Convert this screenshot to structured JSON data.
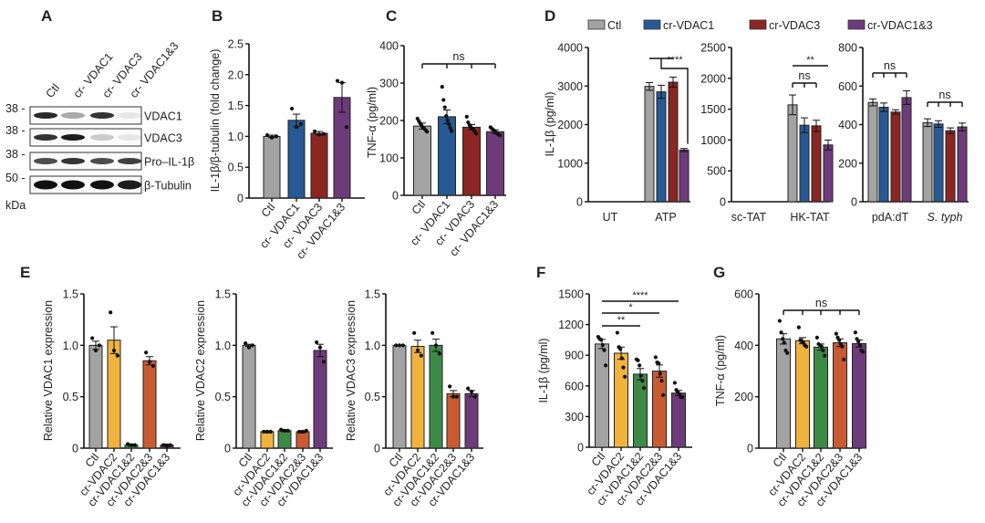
{
  "panel_labels": [
    "A",
    "B",
    "C",
    "D",
    "E",
    "F",
    "G"
  ],
  "western_blot": {
    "lanes": [
      "Ctl",
      "cr- VDAC1",
      "cr- VDAC3",
      "cr- VDAC1&3"
    ],
    "unit": "kDa",
    "rows": [
      {
        "label": "VDAC1",
        "marker": "38 -",
        "intensities": [
          0.9,
          0.35,
          0.85,
          0.08
        ]
      },
      {
        "label": "VDAC3",
        "marker": "38 -",
        "intensities": [
          0.85,
          0.95,
          0.2,
          0.08
        ]
      },
      {
        "label": "Pro–IL-1β",
        "marker": "38 -",
        "intensities": [
          0.75,
          0.85,
          0.75,
          0.8
        ]
      },
      {
        "label": "β-Tubulin",
        "marker": "50 -",
        "intensities": [
          1,
          1,
          1,
          0.95
        ]
      }
    ]
  },
  "legend_D": [
    {
      "name": "Ctl",
      "color": "#a3a3a3"
    },
    {
      "name": "cr-VDAC1",
      "color": "#275a94"
    },
    {
      "name": "cr-VDAC3",
      "color": "#8b2622"
    },
    {
      "name": "cr-VDAC1&3",
      "color": "#6e3b7a"
    }
  ],
  "chart_data": [
    {
      "panel": "B",
      "type": "bar",
      "ylabel": "IL-1β/β-tubulin (fold change)",
      "ylim": [
        0,
        2.5
      ],
      "yticks": [
        "0",
        "0.5",
        "1.0",
        "1.5",
        "2.0",
        "2.5"
      ],
      "categories": [
        "Ctl",
        "cr- VDAC1",
        "cr- VDAC3",
        "cr- VDAC1&3"
      ],
      "values": [
        1.0,
        1.26,
        1.05,
        1.63
      ],
      "errors": [
        0.02,
        0.1,
        0.03,
        0.24
      ],
      "points": [
        [
          1.02,
          0.98,
          1.0
        ],
        [
          1.45,
          1.15,
          1.2
        ],
        [
          1.08,
          1.03,
          1.04
        ],
        [
          1.9,
          1.87,
          1.15
        ]
      ],
      "colors": [
        "#a3a3a3",
        "#275a94",
        "#8b2622",
        "#6e3b7a"
      ],
      "annotations": []
    },
    {
      "panel": "C",
      "type": "bar",
      "ylabel": "TNF-α (pg/ml)",
      "ylim": [
        0,
        400
      ],
      "yticks": [
        "0",
        "100",
        "200",
        "300",
        "400"
      ],
      "categories": [
        "Ctl",
        "cr- VDAC1",
        "cr- VDAC3",
        "cr- VDAC1&3"
      ],
      "values": [
        185,
        210,
        182,
        170
      ],
      "errors": [
        8,
        18,
        7,
        5
      ],
      "points": [
        [
          205,
          198,
          192,
          186,
          181,
          178,
          174,
          170
        ],
        [
          290,
          255,
          235,
          212,
          200,
          190,
          180,
          172
        ],
        [
          210,
          195,
          188,
          182,
          178,
          175,
          170,
          165
        ],
        [
          182,
          178,
          175,
          172,
          168,
          165,
          162,
          160
        ]
      ],
      "colors": [
        "#a3a3a3",
        "#275a94",
        "#8b2622",
        "#6e3b7a"
      ],
      "annotations": [
        {
          "kind": "bracket",
          "from": 0,
          "to": 3,
          "text": "ns"
        }
      ]
    },
    {
      "panel": "D",
      "type": "grouped-bar",
      "ylabel": "IL-1β (pg/ml)",
      "ylim": [
        0,
        4000
      ],
      "yticks": [
        "0",
        "1000",
        "2000",
        "3000",
        "4000"
      ],
      "categories": [
        "UT",
        "ATP"
      ],
      "series": [
        {
          "name": "Ctl",
          "values": [
            0,
            2990
          ],
          "errors": [
            0,
            100
          ]
        },
        {
          "name": "cr-VDAC1",
          "values": [
            0,
            2850
          ],
          "errors": [
            0,
            170
          ]
        },
        {
          "name": "cr-VDAC3",
          "values": [
            0,
            3100
          ],
          "errors": [
            0,
            130
          ]
        },
        {
          "name": "cr-VDAC1&3",
          "values": [
            0,
            1340
          ],
          "errors": [
            0,
            40
          ]
        }
      ],
      "annotations": [
        {
          "kind": "step",
          "group": 1,
          "from": 0,
          "to": 2,
          "target": 3,
          "text": "****"
        }
      ]
    },
    {
      "panel": "D",
      "type": "grouped-bar",
      "ylabel": "",
      "ylim": [
        0,
        2500
      ],
      "yticks": [
        "0",
        "500",
        "1000",
        "1500",
        "2000",
        "2500"
      ],
      "categories": [
        "sc-TAT",
        "HK-TAT"
      ],
      "series": [
        {
          "name": "Ctl",
          "values": [
            0,
            1570
          ],
          "errors": [
            0,
            160
          ]
        },
        {
          "name": "cr-VDAC1",
          "values": [
            0,
            1240
          ],
          "errors": [
            0,
            120
          ]
        },
        {
          "name": "cr-VDAC3",
          "values": [
            0,
            1230
          ],
          "errors": [
            0,
            90
          ]
        },
        {
          "name": "cr-VDAC1&3",
          "values": [
            0,
            920
          ],
          "errors": [
            0,
            80
          ]
        }
      ],
      "annotations": [
        {
          "kind": "line",
          "group": 1,
          "from": 0,
          "to": 3,
          "text": "**"
        },
        {
          "kind": "bracket",
          "group": 1,
          "from": 0,
          "to": 2,
          "text": "ns"
        }
      ]
    },
    {
      "panel": "D",
      "type": "grouped-bar",
      "ylabel": "",
      "ylim": [
        0,
        800
      ],
      "yticks": [
        "0",
        "200",
        "400",
        "600",
        "800"
      ],
      "categories": [
        "pdA:dT",
        "S. typh"
      ],
      "series": [
        {
          "name": "Ctl",
          "values": [
            515,
            410
          ],
          "errors": [
            18,
            20
          ]
        },
        {
          "name": "cr-VDAC1",
          "values": [
            490,
            403
          ],
          "errors": [
            22,
            17
          ]
        },
        {
          "name": "cr-VDAC3",
          "values": [
            465,
            368
          ],
          "errors": [
            12,
            15
          ]
        },
        {
          "name": "cr-VDAC1&3",
          "values": [
            540,
            388
          ],
          "errors": [
            35,
            20
          ]
        }
      ],
      "annotations": [
        {
          "kind": "bracket",
          "group": 0,
          "from": 0,
          "to": 3,
          "text": "ns"
        },
        {
          "kind": "bracket",
          "group": 1,
          "from": 0,
          "to": 3,
          "text": "ns"
        }
      ]
    },
    {
      "panel": "E",
      "type": "bar",
      "ylabel": "Relative VDAC1 expression",
      "ylim": [
        0,
        1.5
      ],
      "yticks": [
        "0",
        "0.5",
        "1.0",
        "1.5"
      ],
      "categories": [
        "Ctl",
        "cr-VDAC2",
        "cr-VDAC1&2",
        "cr-VDAC2&3",
        "cr-VDAC1&3"
      ],
      "values": [
        1.0,
        1.05,
        0.03,
        0.85,
        0.03
      ],
      "errors": [
        0.04,
        0.13,
        0.01,
        0.04,
        0.01
      ],
      "points": [
        [
          1.07,
          0.95,
          1.0
        ],
        [
          1.32,
          0.95,
          0.9
        ],
        [
          0.04,
          0.03,
          0.03
        ],
        [
          0.93,
          0.84,
          0.8
        ],
        [
          0.03,
          0.02,
          0.03
        ]
      ],
      "colors": [
        "#a3a3a3",
        "#f0b33e",
        "#3d8a47",
        "#c95b32",
        "#6e3b7a"
      ],
      "annotations": []
    },
    {
      "panel": "E",
      "type": "bar",
      "ylabel": "Relative VDAC2 expression",
      "ylim": [
        0,
        1.5
      ],
      "yticks": [
        "0",
        "0.5",
        "1.0",
        "1.5"
      ],
      "categories": [
        "Ctl",
        "cr-VDAC2",
        "cr-VDAC1&2",
        "cr-VDAC2&3",
        "cr-VDAC1&3"
      ],
      "values": [
        1.0,
        0.16,
        0.17,
        0.16,
        0.95
      ],
      "errors": [
        0.01,
        0.01,
        0.01,
        0.01,
        0.06
      ],
      "points": [
        [
          1.02,
          0.98,
          1.0
        ],
        [
          0.16,
          0.16,
          0.16
        ],
        [
          0.18,
          0.17,
          0.17
        ],
        [
          0.16,
          0.16,
          0.17
        ],
        [
          1.03,
          0.98,
          0.84
        ]
      ],
      "colors": [
        "#a3a3a3",
        "#f0b33e",
        "#3d8a47",
        "#c95b32",
        "#6e3b7a"
      ],
      "annotations": []
    },
    {
      "panel": "E",
      "type": "bar",
      "ylabel": "Relative VDAC3 expression",
      "ylim": [
        0,
        1.5
      ],
      "yticks": [
        "0",
        "0.5",
        "1.0",
        "1.5"
      ],
      "categories": [
        "Ctl",
        "cr-VDAC2",
        "cr-VDAC1&2",
        "cr-VDAC2&3",
        "cr-VDAC1&3"
      ],
      "values": [
        1.0,
        0.99,
        1.0,
        0.53,
        0.53
      ],
      "errors": [
        0.0,
        0.06,
        0.06,
        0.03,
        0.03
      ],
      "points": [
        [
          1,
          1,
          1
        ],
        [
          1.12,
          0.95,
          0.9
        ],
        [
          1.12,
          1.0,
          0.92
        ],
        [
          0.6,
          0.5,
          0.5
        ],
        [
          0.58,
          0.55,
          0.5
        ]
      ],
      "colors": [
        "#a3a3a3",
        "#f0b33e",
        "#3d8a47",
        "#c95b32",
        "#6e3b7a"
      ],
      "annotations": []
    },
    {
      "panel": "F",
      "type": "bar",
      "ylabel": "IL-1β (pg/ml)",
      "ylim": [
        0,
        1500
      ],
      "yticks": [
        "0",
        "300",
        "600",
        "900",
        "1200",
        "1500"
      ],
      "categories": [
        "Ctl",
        "cr-VDAC2",
        "cr-VDAC1&2",
        "cr-VDAC2&3",
        "cr-VDAC1&3"
      ],
      "values": [
        1010,
        920,
        715,
        745,
        530
      ],
      "errors": [
        45,
        60,
        55,
        60,
        25
      ],
      "points": [
        [
          1080,
          1060,
          1050,
          1000,
          950,
          800
        ],
        [
          1120,
          980,
          960,
          870,
          780,
          690
        ],
        [
          860,
          850,
          800,
          700,
          650,
          580
        ],
        [
          880,
          830,
          820,
          720,
          650,
          510
        ],
        [
          630,
          560,
          540,
          520,
          490,
          490
        ]
      ],
      "colors": [
        "#a3a3a3",
        "#f0b33e",
        "#3d8a47",
        "#c95b32",
        "#6e3b7a"
      ],
      "annotations": [
        {
          "kind": "line",
          "from": 0,
          "to": 4,
          "text": "****"
        },
        {
          "kind": "line",
          "from": 0,
          "to": 3,
          "text": "*"
        },
        {
          "kind": "line",
          "from": 0,
          "to": 2,
          "text": "**"
        }
      ]
    },
    {
      "panel": "G",
      "type": "bar",
      "ylabel": "TNF-α (pg/ml)",
      "ylim": [
        0,
        600
      ],
      "yticks": [
        "0",
        "200",
        "400",
        "600"
      ],
      "categories": [
        "Ctl",
        "cr-VDAC2",
        "cr-VDAC1&2",
        "cr-VDAC2&3",
        "cr-VDAC1&3"
      ],
      "values": [
        425,
        418,
        393,
        410,
        407
      ],
      "errors": [
        20,
        12,
        12,
        15,
        14
      ],
      "points": [
        [
          495,
          450,
          425,
          410,
          380,
          370
        ],
        [
          470,
          420,
          415,
          410,
          400,
          395
        ],
        [
          430,
          405,
          400,
          395,
          380,
          360
        ],
        [
          445,
          430,
          420,
          405,
          395,
          345
        ],
        [
          450,
          425,
          415,
          400,
          380,
          375
        ]
      ],
      "colors": [
        "#a3a3a3",
        "#f0b33e",
        "#3d8a47",
        "#c95b32",
        "#6e3b7a"
      ],
      "annotations": [
        {
          "kind": "bracket",
          "from": 0,
          "to": 4,
          "text": "ns"
        }
      ]
    }
  ]
}
